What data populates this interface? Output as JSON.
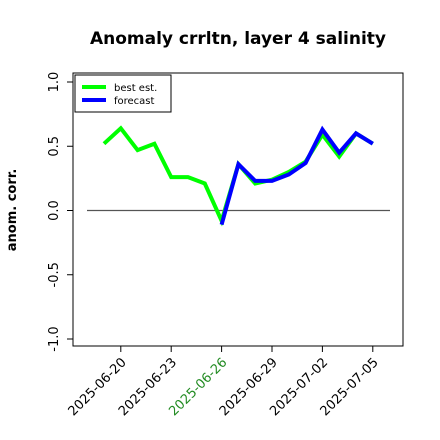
{
  "chart_data": {
    "type": "line",
    "title": "Anomaly crrltn, layer 4 salinity",
    "xlabel": "",
    "ylabel": "anom. corr.",
    "ylim": [
      -1.0,
      1.0
    ],
    "yticks": [
      "-1.0",
      "-0.5",
      "0.0",
      "0.5",
      "1.0"
    ],
    "xticks": [
      "2025-06-20",
      "2025-06-23",
      "2025-06-26",
      "2025-06-29",
      "2025-07-02",
      "2025-07-05"
    ],
    "highlight_tick": "2025-06-26",
    "highlight_color": "#228b22",
    "zero_line": true,
    "grid": false,
    "legend_position": "top-left",
    "series": [
      {
        "name": "best est.",
        "color": "#00ff00",
        "x": [
          "2025-06-19",
          "2025-06-20",
          "2025-06-21",
          "2025-06-22",
          "2025-06-23",
          "2025-06-24",
          "2025-06-25",
          "2025-06-26",
          "2025-06-27",
          "2025-06-28",
          "2025-06-29",
          "2025-06-30",
          "2025-07-01",
          "2025-07-02",
          "2025-07-03",
          "2025-07-04",
          "2025-07-05"
        ],
        "values": [
          0.52,
          0.64,
          0.47,
          0.52,
          0.26,
          0.26,
          0.21,
          -0.08,
          0.36,
          0.21,
          0.24,
          0.3,
          0.38,
          0.59,
          0.42,
          0.6,
          0.52
        ]
      },
      {
        "name": "forecast",
        "color": "#0000ff",
        "x": [
          "2025-06-26",
          "2025-06-27",
          "2025-06-28",
          "2025-06-29",
          "2025-06-30",
          "2025-07-01",
          "2025-07-02",
          "2025-07-03",
          "2025-07-04",
          "2025-07-05"
        ],
        "values": [
          -0.11,
          0.36,
          0.23,
          0.23,
          0.28,
          0.37,
          0.63,
          0.45,
          0.6,
          0.52
        ]
      }
    ]
  }
}
